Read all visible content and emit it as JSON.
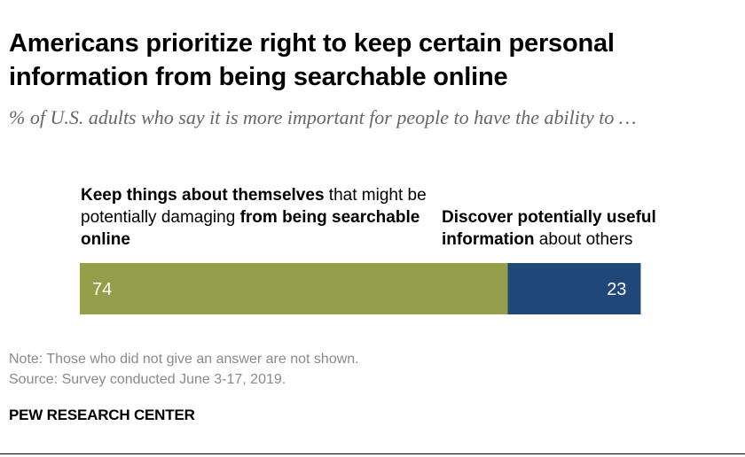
{
  "title": "Americans prioritize right to keep certain personal information from being searchable online",
  "subtitle": "% of U.S. adults who say it is more important for people to have the ability to …",
  "chart_data": {
    "type": "bar",
    "orientation": "horizontal-stacked",
    "categories": [
      ""
    ],
    "series": [
      {
        "name": "Keep things about themselves that might be potentially damaging from being searchable online",
        "values": [
          74
        ],
        "color": "#949d48",
        "label_parts": [
          {
            "text": "Keep things about themselves",
            "bold": true
          },
          {
            "text": " that might be potentially damaging ",
            "bold": false
          },
          {
            "text": "from being searchable online",
            "bold": true
          }
        ]
      },
      {
        "name": "Discover potentially useful information about others",
        "values": [
          23
        ],
        "color": "#1f4778",
        "label_parts": [
          {
            "text": "Discover potentially useful information",
            "bold": true
          },
          {
            "text": " about others",
            "bold": false
          }
        ]
      }
    ],
    "data_labels": [
      "74",
      "23"
    ],
    "xlim": [
      0,
      100
    ]
  },
  "note": "Note: Those who did not give an answer are not shown.",
  "source": "Source: Survey conducted June 3-17, 2019.",
  "brand": "PEW RESEARCH CENTER"
}
